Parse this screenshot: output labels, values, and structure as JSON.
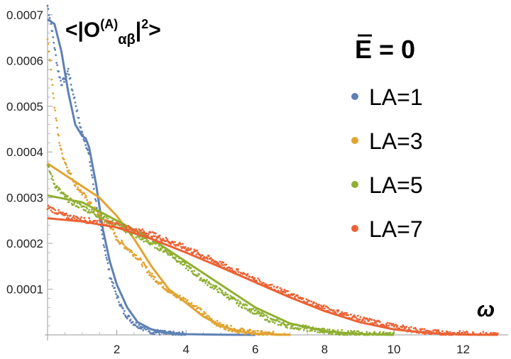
{
  "chart_data": {
    "type": "scatter",
    "title": "<|O(A)αβ|²>",
    "title_parts": {
      "open": "<|O",
      "sup": "(A)",
      "sub": "αβ",
      "close_bar": "|",
      "power": "2",
      "close": ">"
    },
    "annotation": {
      "label": "E = 0"
    },
    "xlabel": "ω",
    "ylabel": "",
    "xlim": [
      0,
      13.3
    ],
    "ylim": [
      0,
      0.00072
    ],
    "x_ticks": [
      2,
      4,
      6,
      8,
      10,
      12
    ],
    "y_ticks": [
      {
        "value": 0.0001,
        "label": "0.0001"
      },
      {
        "value": 0.0002,
        "label": "0.0002"
      },
      {
        "value": 0.0003,
        "label": "0.0003"
      },
      {
        "value": 0.0004,
        "label": "0.0004"
      },
      {
        "value": 0.0005,
        "label": "0.0005"
      },
      {
        "value": 0.0006,
        "label": "0.0006"
      },
      {
        "value": 0.0007,
        "label": "0.0007"
      }
    ],
    "legend_position": "right",
    "series": [
      {
        "name": "LA=1",
        "color": "#5e81b5",
        "points": [
          [
            0,
            0.00069
          ],
          [
            0.2,
            0.00068
          ],
          [
            0.4,
            0.00062
          ],
          [
            0.6,
            0.00053
          ],
          [
            0.8,
            0.00046
          ],
          [
            1.0,
            0.000435
          ],
          [
            1.1,
            0.00043
          ],
          [
            1.2,
            0.00041
          ],
          [
            1.4,
            0.00033
          ],
          [
            1.6,
            0.00023
          ],
          [
            1.8,
            0.00016
          ],
          [
            2.0,
            0.00011
          ],
          [
            2.3,
            6e-05
          ],
          [
            2.6,
            2.8e-05
          ],
          [
            3.0,
            1.2e-05
          ],
          [
            3.5,
            4e-06
          ],
          [
            4.0,
            1.5e-06
          ],
          [
            5.0,
            3e-07
          ],
          [
            6.0,
            0
          ]
        ],
        "data_points": [
          [
            0,
            0.00072
          ],
          [
            0.1,
            0.00068
          ],
          [
            0.2,
            0.00063
          ],
          [
            0.3,
            0.00058
          ],
          [
            0.4,
            0.00055
          ],
          [
            0.5,
            0.00056
          ],
          [
            0.6,
            0.00058
          ],
          [
            0.7,
            0.00054
          ],
          [
            0.8,
            0.00051
          ],
          [
            0.9,
            0.00047
          ],
          [
            1.0,
            0.00044
          ],
          [
            1.1,
            0.00042
          ],
          [
            1.2,
            0.00039
          ],
          [
            1.3,
            0.00034
          ],
          [
            1.4,
            0.00029
          ],
          [
            1.5,
            0.00025
          ],
          [
            1.6,
            0.00021
          ],
          [
            1.7,
            0.00017
          ],
          [
            1.8,
            0.00013
          ],
          [
            2.0,
            8.5e-05
          ],
          [
            2.2,
            5e-05
          ],
          [
            2.5,
            2.5e-05
          ],
          [
            3.0,
            8e-06
          ],
          [
            3.5,
            2e-06
          ],
          [
            4.0,
            0
          ]
        ]
      },
      {
        "name": "LA=3",
        "color": "#e1a433",
        "points": [
          [
            0,
            0.000375
          ],
          [
            0.5,
            0.00035
          ],
          [
            1.0,
            0.000325
          ],
          [
            1.5,
            0.0003
          ],
          [
            2.0,
            0.00026
          ],
          [
            2.5,
            0.00021
          ],
          [
            3.0,
            0.00015
          ],
          [
            3.5,
            0.0001
          ],
          [
            4.0,
            7e-05
          ],
          [
            4.5,
            4e-05
          ],
          [
            5.0,
            2e-05
          ],
          [
            5.5,
            8e-06
          ],
          [
            6.0,
            3e-06
          ],
          [
            7.0,
            0
          ]
        ],
        "data_points": [
          [
            0,
            0.00065
          ],
          [
            0.1,
            0.00058
          ],
          [
            0.2,
            0.0005
          ],
          [
            0.3,
            0.00044
          ],
          [
            0.4,
            0.0004
          ],
          [
            0.6,
            0.00036
          ],
          [
            0.8,
            0.00033
          ],
          [
            1.0,
            0.00031
          ],
          [
            1.2,
            0.00029
          ],
          [
            1.5,
            0.00026
          ],
          [
            1.8,
            0.00024
          ],
          [
            2.0,
            0.00021
          ],
          [
            2.3,
            0.00019
          ],
          [
            2.6,
            0.00017
          ],
          [
            3.0,
            0.00013
          ],
          [
            3.3,
            0.00011
          ],
          [
            3.6,
            9e-05
          ],
          [
            4.0,
            7.5e-05
          ],
          [
            4.3,
            6e-05
          ],
          [
            4.6,
            4e-05
          ],
          [
            5.0,
            2e-05
          ],
          [
            5.5,
            1e-05
          ],
          [
            6.0,
            4e-06
          ],
          [
            6.5,
            1e-06
          ],
          [
            7.0,
            0
          ]
        ]
      },
      {
        "name": "LA=5",
        "color": "#8fb032",
        "points": [
          [
            0,
            0.000305
          ],
          [
            1.0,
            0.00029
          ],
          [
            2.0,
            0.00025
          ],
          [
            3.0,
            0.00021
          ],
          [
            4.0,
            0.00016
          ],
          [
            5.0,
            0.00011
          ],
          [
            6.0,
            6e-05
          ],
          [
            7.0,
            2.5e-05
          ],
          [
            8.0,
            8e-06
          ],
          [
            9.0,
            2e-06
          ],
          [
            10.0,
            0
          ]
        ],
        "data_points": [
          [
            0,
            0.00037
          ],
          [
            0.2,
            0.00033
          ],
          [
            0.4,
            0.00031
          ],
          [
            0.7,
            0.00029
          ],
          [
            1.0,
            0.00028
          ],
          [
            1.5,
            0.00026
          ],
          [
            2.0,
            0.00024
          ],
          [
            2.5,
            0.00022
          ],
          [
            3.0,
            0.0002
          ],
          [
            3.5,
            0.00018
          ],
          [
            4.0,
            0.00015
          ],
          [
            4.5,
            0.00012
          ],
          [
            5.0,
            9.5e-05
          ],
          [
            5.5,
            7e-05
          ],
          [
            6.0,
            5e-05
          ],
          [
            6.5,
            3e-05
          ],
          [
            7.0,
            2e-05
          ],
          [
            8.0,
            8e-06
          ],
          [
            9.0,
            2e-06
          ],
          [
            10.0,
            0
          ]
        ]
      },
      {
        "name": "LA=7",
        "color": "#eb6235",
        "points": [
          [
            0,
            0.000255
          ],
          [
            1.0,
            0.000248
          ],
          [
            2.0,
            0.000235
          ],
          [
            3.0,
            0.00021
          ],
          [
            4.0,
            0.00018
          ],
          [
            5.0,
            0.000148
          ],
          [
            6.0,
            0.000115
          ],
          [
            7.0,
            8.2e-05
          ],
          [
            8.0,
            5.2e-05
          ],
          [
            9.0,
            2.8e-05
          ],
          [
            10.0,
            1.2e-05
          ],
          [
            11.0,
            4e-06
          ],
          [
            12.0,
            1e-06
          ],
          [
            13.0,
            0
          ]
        ],
        "data_points": [
          [
            0,
            0.00028
          ],
          [
            0.5,
            0.00026
          ],
          [
            1.0,
            0.000252
          ],
          [
            2.0,
            0.00024
          ],
          [
            3.0,
            0.00022
          ],
          [
            4.0,
            0.00019
          ],
          [
            5.0,
            0.000155
          ],
          [
            6.0,
            0.00012
          ],
          [
            7.0,
            8.8e-05
          ],
          [
            8.0,
            5.8e-05
          ],
          [
            9.0,
            3.5e-05
          ],
          [
            10.0,
            1.8e-05
          ],
          [
            11.0,
            6e-06
          ],
          [
            12.0,
            2e-06
          ],
          [
            13.0,
            0
          ]
        ]
      }
    ]
  }
}
